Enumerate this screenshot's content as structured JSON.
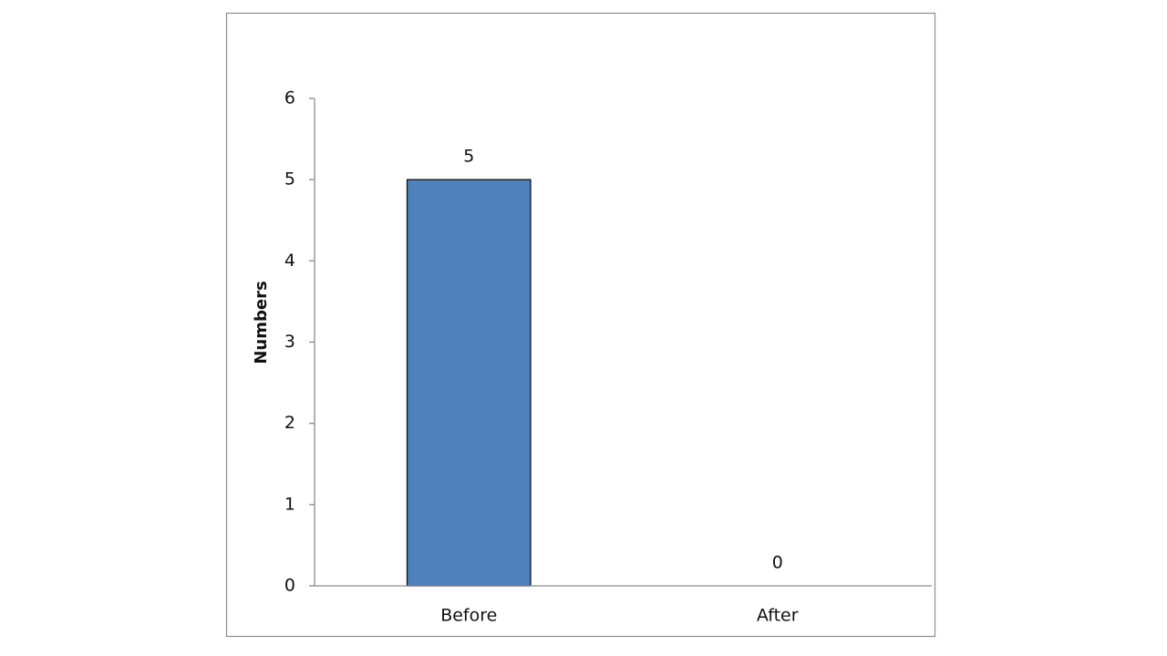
{
  "chart_data": {
    "type": "bar",
    "ylabel": "Numbers",
    "categories": [
      "Before",
      "After"
    ],
    "values": [
      5,
      0
    ],
    "color": "#4f81bd",
    "ylim": [
      0,
      6
    ],
    "yticks": [
      0,
      1,
      2,
      3,
      4,
      5,
      6
    ],
    "grid": false,
    "data_labels": true
  }
}
